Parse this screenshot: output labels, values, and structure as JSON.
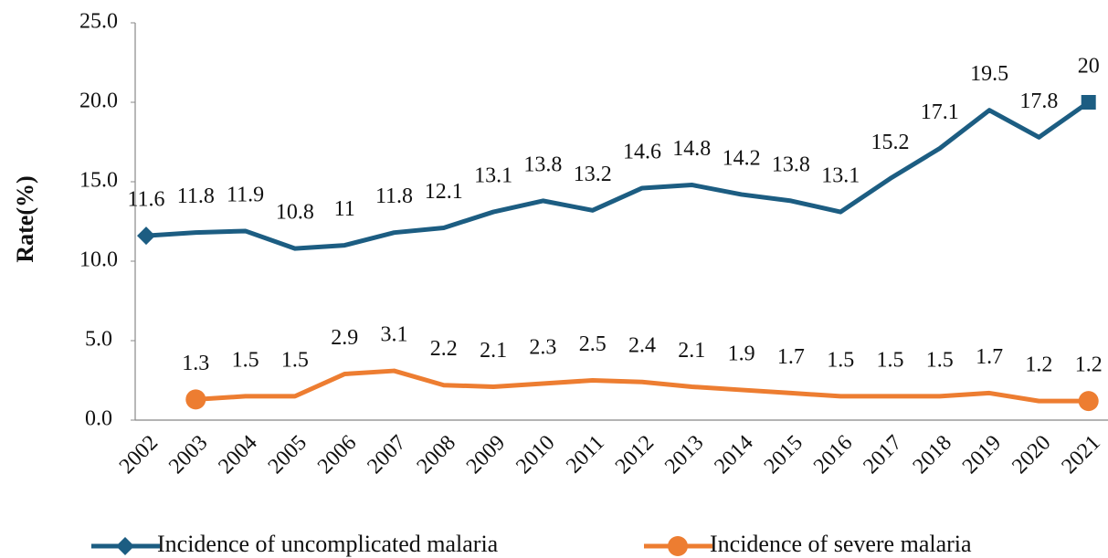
{
  "chart_data": {
    "type": "line",
    "y_label": "Rate(%)",
    "categories": [
      "2002",
      "2003",
      "2004",
      "2005",
      "2006",
      "2007",
      "2008",
      "2009",
      "2010",
      "2011",
      "2012",
      "2013",
      "2014",
      "2015",
      "2016",
      "2017",
      "2018",
      "2019",
      "2020",
      "2021"
    ],
    "series": [
      {
        "name": "Incidence of uncomplicated malaria",
        "color": "#1c5d82",
        "marker": "diamond",
        "end_marker": "square",
        "values": [
          11.6,
          11.8,
          11.9,
          10.8,
          11,
          11.8,
          12.1,
          13.1,
          13.8,
          13.2,
          14.6,
          14.8,
          14.2,
          13.8,
          13.1,
          15.2,
          17.1,
          19.5,
          17.8,
          20
        ]
      },
      {
        "name": "Incidence of severe malaria",
        "color": "#ed7d31",
        "marker": "circle",
        "end_marker": "circle",
        "values": [
          null,
          1.3,
          1.5,
          1.5,
          2.9,
          3.1,
          2.2,
          2.1,
          2.3,
          2.5,
          2.4,
          2.1,
          1.9,
          1.7,
          1.5,
          1.5,
          1.5,
          1.7,
          1.2,
          1.2
        ]
      }
    ],
    "ylim": [
      0,
      25
    ],
    "yticks": [
      {
        "value": 0,
        "label": "0.0"
      },
      {
        "value": 5,
        "label": "5.0"
      },
      {
        "value": 10,
        "label": "10.0"
      },
      {
        "value": 15,
        "label": "15.0"
      },
      {
        "value": 20,
        "label": "20.0"
      },
      {
        "value": 25,
        "label": "25.0"
      }
    ],
    "grid": false
  }
}
